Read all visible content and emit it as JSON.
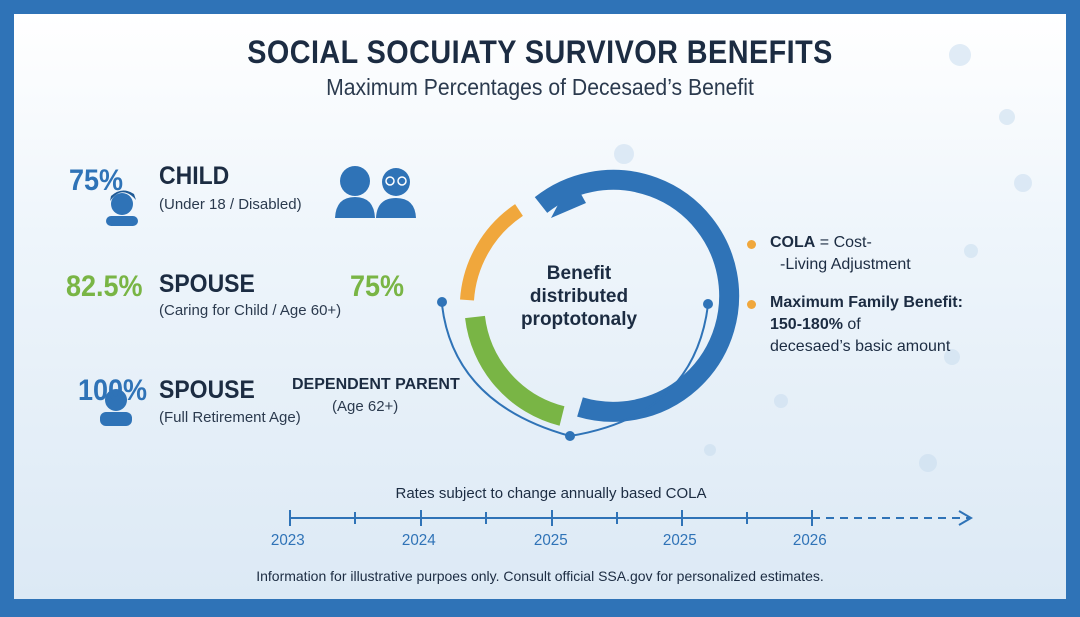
{
  "header": {
    "title": "SOCIAL SOCUIATY SURVIVOR BENEFITS",
    "subtitle": "Maximum Percentages of Decesaed’s Benefit"
  },
  "benefits": [
    {
      "percent": "75%",
      "category": "CHILD",
      "note": "(Under 18 / Disabled)",
      "color": "#2f73b7",
      "icon": "child-icon"
    },
    {
      "percent": "82.5%",
      "category": "SPOUSE",
      "note": "(Caring for Child / Age 60+)",
      "color": "#79b545",
      "icon": ""
    },
    {
      "percent": "100%",
      "category": "SPOUSE",
      "note": "(Full Retirement Age)",
      "color": "#2f73b7",
      "icon": "person-icon"
    }
  ],
  "dependent_parent": {
    "percent": "75%",
    "category": "DEPENDENT PARENT",
    "note": "(Age 62+)",
    "icon": "couple-icon",
    "percent_color": "#79b545"
  },
  "cycle": {
    "center_lines": [
      "Benefit",
      "distributed",
      "proptotonaly"
    ],
    "colors": {
      "blue": "#2f73b7",
      "orange": "#f0a73c",
      "green": "#79b545"
    }
  },
  "info": {
    "cola_term": "COLA",
    "cola_def_1": "= Cost-",
    "cola_def_2": "-Living Adjustment",
    "max_family_title": "Maximum Family Benefit:",
    "max_family_range": "150-180%",
    "max_family_of": "of",
    "max_family_tail": "decesaed’s basic amount"
  },
  "timeline": {
    "caption": "Rates subject to change annually based COLA",
    "labels": [
      "2023",
      "2024",
      "2025",
      "2025",
      "2026"
    ]
  },
  "footer": "Information for illustrative purpoes only. Consult official SSA.gov for personalized estimates."
}
